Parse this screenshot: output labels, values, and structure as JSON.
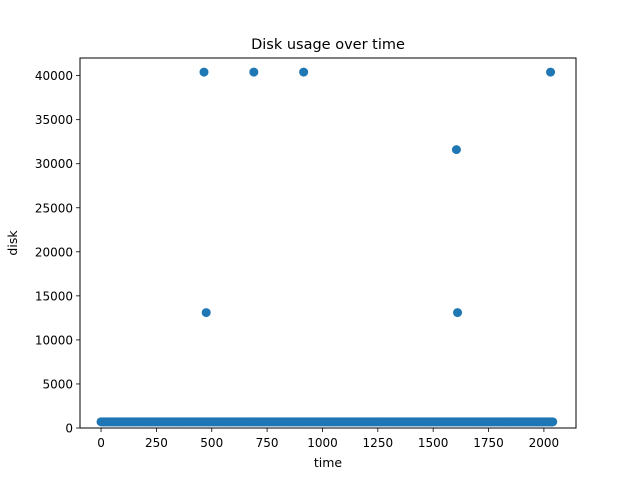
{
  "chart_data": {
    "type": "scatter",
    "title": "Disk usage over time",
    "xlabel": "time",
    "ylabel": "disk",
    "xlim": [
      -95,
      2145
    ],
    "ylim": [
      0,
      42000
    ],
    "xticks": [
      0,
      250,
      500,
      750,
      1000,
      1250,
      1500,
      1750,
      2000
    ],
    "yticks": [
      0,
      5000,
      10000,
      15000,
      20000,
      25000,
      30000,
      35000,
      40000
    ],
    "grid": false,
    "color": "#1f77b4",
    "baseline": {
      "x_start": 0,
      "x_end": 2040,
      "x_step": 5,
      "y": 700
    },
    "points": [
      {
        "x": 465,
        "y": 40400
      },
      {
        "x": 690,
        "y": 40400
      },
      {
        "x": 915,
        "y": 40400
      },
      {
        "x": 2030,
        "y": 40400
      },
      {
        "x": 1605,
        "y": 31600
      },
      {
        "x": 475,
        "y": 13100
      },
      {
        "x": 1610,
        "y": 13100
      }
    ]
  }
}
